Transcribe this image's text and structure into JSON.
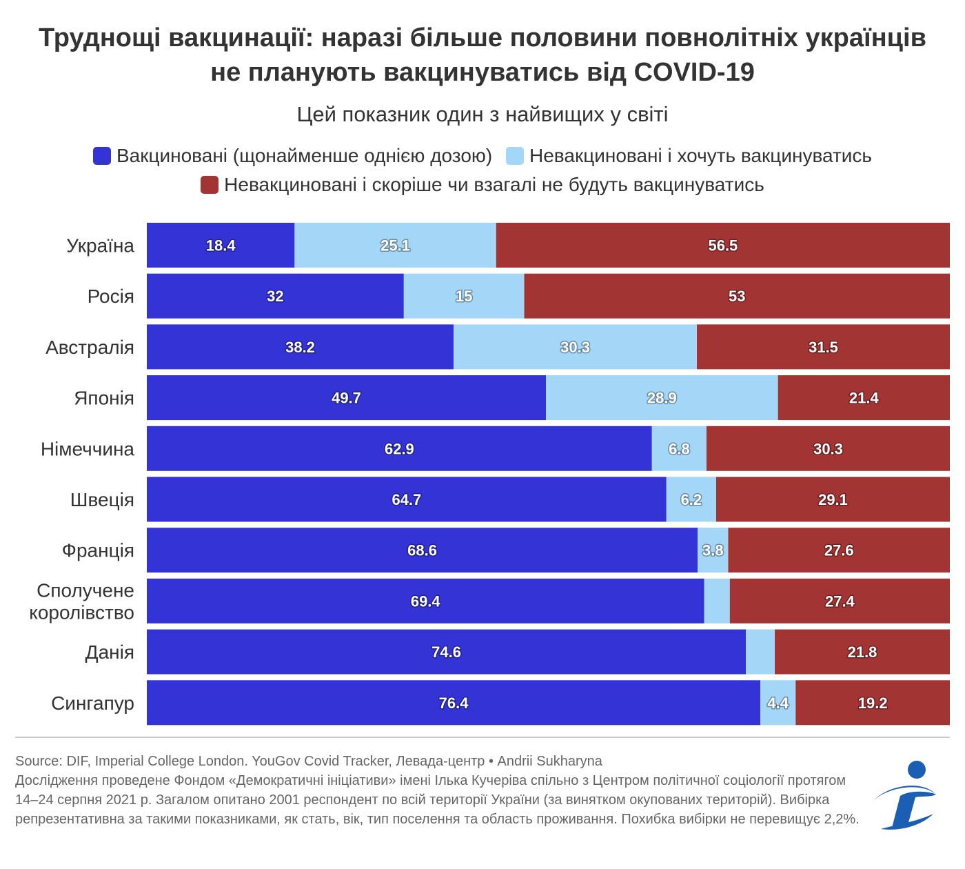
{
  "title": "Труднощі вакцинації: наразі більше половини повнолітніх українців не планують вакцинуватись від COVID-19",
  "subtitle": "Цей показник один з найвищих у світі",
  "legend": [
    {
      "label": "Вакциновані (щонайменше однією дозою)",
      "color": "#3333d6"
    },
    {
      "label": "Невакциновані і хочуть вакцинуватись",
      "color": "#a3d6f7"
    },
    {
      "label": "Невакциновані і скоріше чи взагалі не будуть вакцинуватись",
      "color": "#a33434"
    }
  ],
  "chart_data": {
    "type": "bar",
    "orientation": "horizontal",
    "stacked": true,
    "stack_total": 100,
    "legend_position": "top",
    "categories": [
      "Україна",
      "Росія",
      "Австралія",
      "Японія",
      "Німеччина",
      "Швеція",
      "Франція",
      "Сполучене королівство",
      "Данія",
      "Сингапур"
    ],
    "series": [
      {
        "name": "Вакциновані (щонайменше однією дозою)",
        "color": "#3333d6",
        "values": [
          18.4,
          32,
          38.2,
          49.7,
          62.9,
          64.7,
          68.6,
          69.4,
          74.6,
          76.4
        ]
      },
      {
        "name": "Невакциновані і хочуть вакцинуватись",
        "color": "#a3d6f7",
        "values": [
          25.1,
          15,
          30.3,
          28.9,
          6.8,
          6.2,
          3.8,
          3.2,
          3.6,
          4.4
        ]
      },
      {
        "name": "Невакциновані і скоріше чи взагалі не будуть вакцинуватись",
        "color": "#a33434",
        "values": [
          56.5,
          53,
          31.5,
          21.4,
          30.3,
          29.1,
          27.6,
          27.4,
          21.8,
          19.2
        ]
      }
    ],
    "data_labels": [
      [
        "18.4",
        "25.1",
        "56.5"
      ],
      [
        "32",
        "15",
        "53"
      ],
      [
        "38.2",
        "30.3",
        "31.5"
      ],
      [
        "49.7",
        "28.9",
        "21.4"
      ],
      [
        "62.9",
        "6.8",
        "30.3"
      ],
      [
        "64.7",
        "6.2",
        "29.1"
      ],
      [
        "68.6",
        "3.8",
        "27.6"
      ],
      [
        "69.4",
        "",
        "27.4"
      ],
      [
        "74.6",
        "",
        "21.8"
      ],
      [
        "76.4",
        "4.4",
        "19.2"
      ]
    ]
  },
  "source": {
    "line1": "Source: DIF, Imperial College London. YouGov Covid Tracker, Левада-центр • Andrii Sukharyna",
    "line2": "Дослідження проведене Фондом «Демократичні ініціативи» імені Ілька Кучеріва спільно з Центром політичної соціології протягом 14–24 серпня 2021 р. Загалом опитано 2001 респондент по всій території України (за винятком окупованих територій). Вибірка репрезентативна за такими показниками, як стать, вік, тип поселення та область проживання. Похибка вибірки не перевищує 2,2%."
  },
  "logo": {
    "icon": "dif-logo-icon",
    "color": "#1a5fb4"
  }
}
